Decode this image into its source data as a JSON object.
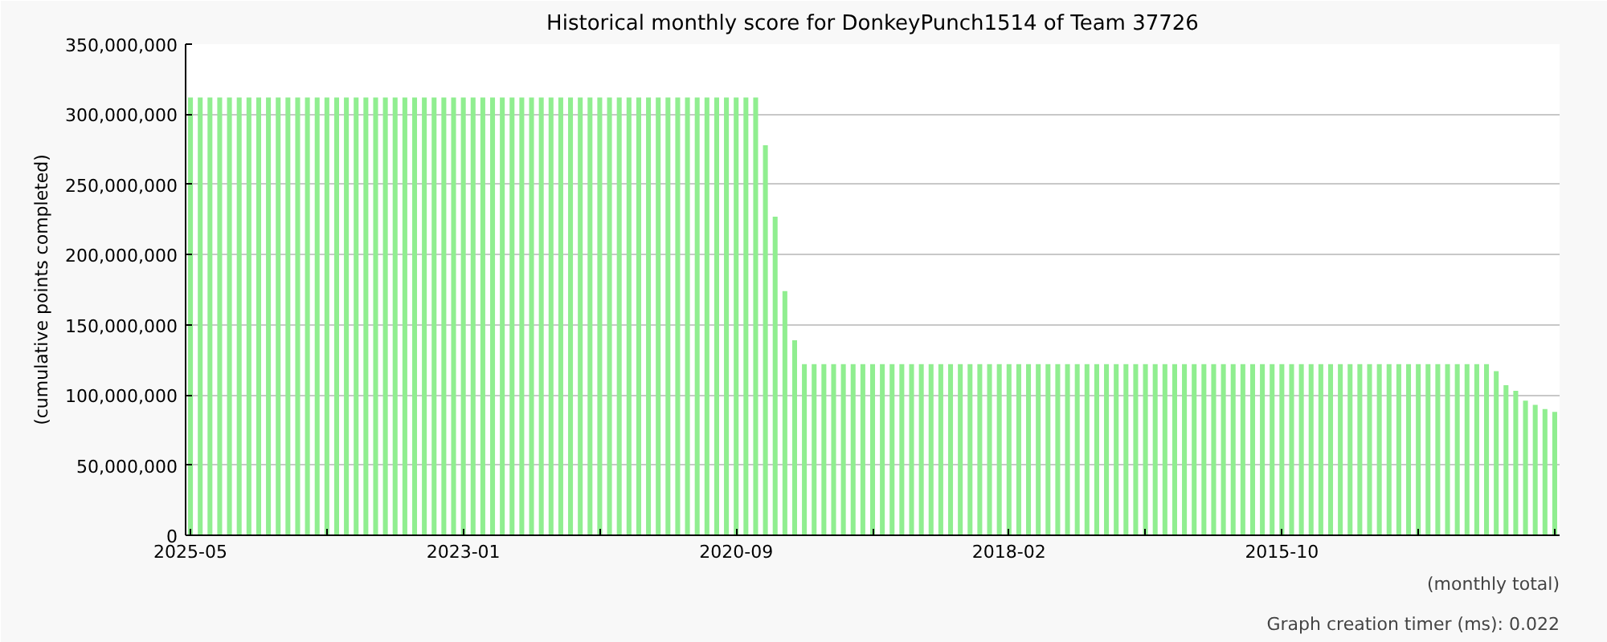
{
  "chart_data": {
    "type": "bar",
    "title": "Historical monthly score for DonkeyPunch1514 of Team 37726",
    "ylabel": "(cumulative points completed)",
    "annotations": [
      "(monthly total)",
      "Graph creation timer (ms): 0.022"
    ],
    "categories": [
      "2025-05",
      null,
      null,
      null,
      null,
      null,
      null,
      null,
      null,
      null,
      null,
      null,
      null,
      null,
      null,
      null,
      null,
      null,
      null,
      null,
      null,
      null,
      null,
      null,
      null,
      null,
      null,
      null,
      "2023-01",
      null,
      null,
      null,
      null,
      null,
      null,
      null,
      null,
      null,
      null,
      null,
      null,
      null,
      null,
      null,
      null,
      null,
      null,
      null,
      null,
      null,
      null,
      null,
      null,
      null,
      null,
      null,
      "2020-09",
      null,
      null,
      null,
      null,
      null,
      null,
      null,
      null,
      null,
      null,
      null,
      null,
      null,
      null,
      null,
      null,
      null,
      null,
      null,
      null,
      null,
      null,
      null,
      null,
      null,
      null,
      null,
      "2018-02",
      null,
      null,
      null,
      null,
      null,
      null,
      null,
      null,
      null,
      null,
      null,
      null,
      null,
      null,
      null,
      null,
      null,
      null,
      null,
      null,
      null,
      null,
      null,
      null,
      null,
      null,
      null,
      "2015-10",
      null,
      null,
      null,
      null,
      null,
      null,
      null,
      null,
      null,
      null,
      null,
      null,
      null,
      null,
      null,
      null,
      null,
      null,
      null,
      null,
      null,
      null,
      null,
      null,
      null,
      null,
      null,
      null
    ],
    "values": [
      312000000,
      312000000,
      312000000,
      312000000,
      312000000,
      312000000,
      312000000,
      312000000,
      312000000,
      312000000,
      312000000,
      312000000,
      312000000,
      312000000,
      312000000,
      312000000,
      312000000,
      312000000,
      312000000,
      312000000,
      312000000,
      312000000,
      312000000,
      312000000,
      312000000,
      312000000,
      312000000,
      312000000,
      312000000,
      312000000,
      312000000,
      312000000,
      312000000,
      312000000,
      312000000,
      312000000,
      312000000,
      312000000,
      312000000,
      312000000,
      312000000,
      312000000,
      312000000,
      312000000,
      312000000,
      312000000,
      312000000,
      312000000,
      312000000,
      312000000,
      312000000,
      312000000,
      312000000,
      312000000,
      312000000,
      312000000,
      312000000,
      312000000,
      312000000,
      278000000,
      227000000,
      174000000,
      139000000,
      122000000,
      122000000,
      122000000,
      122000000,
      122000000,
      122000000,
      122000000,
      122000000,
      122000000,
      122000000,
      122000000,
      122000000,
      122000000,
      122000000,
      122000000,
      122000000,
      122000000,
      122000000,
      122000000,
      122000000,
      122000000,
      122000000,
      122000000,
      122000000,
      122000000,
      122000000,
      122000000,
      122000000,
      122000000,
      122000000,
      122000000,
      122000000,
      122000000,
      122000000,
      122000000,
      122000000,
      122000000,
      122000000,
      122000000,
      122000000,
      122000000,
      122000000,
      122000000,
      122000000,
      122000000,
      122000000,
      122000000,
      122000000,
      122000000,
      122000000,
      122000000,
      122000000,
      122000000,
      122000000,
      122000000,
      122000000,
      122000000,
      122000000,
      122000000,
      122000000,
      122000000,
      122000000,
      122000000,
      122000000,
      122000000,
      122000000,
      122000000,
      122000000,
      122000000,
      122000000,
      122000000,
      117000000,
      107000000,
      103000000,
      96000000,
      93000000,
      90000000,
      88000000
    ],
    "color": "#90ee90",
    "ylim": [
      0,
      350000000
    ],
    "yticks": [
      {
        "value": 0,
        "label": "0"
      },
      {
        "value": 50000000,
        "label": "50,000,000"
      },
      {
        "value": 100000000,
        "label": "100,000,000"
      },
      {
        "value": 150000000,
        "label": "150,000,000"
      },
      {
        "value": 200000000,
        "label": "200,000,000"
      },
      {
        "value": 250000000,
        "label": "250,000,000"
      },
      {
        "value": 300000000,
        "label": "300,000,000"
      },
      {
        "value": 350000000,
        "label": "350,000,000"
      }
    ],
    "grid": "y"
  }
}
